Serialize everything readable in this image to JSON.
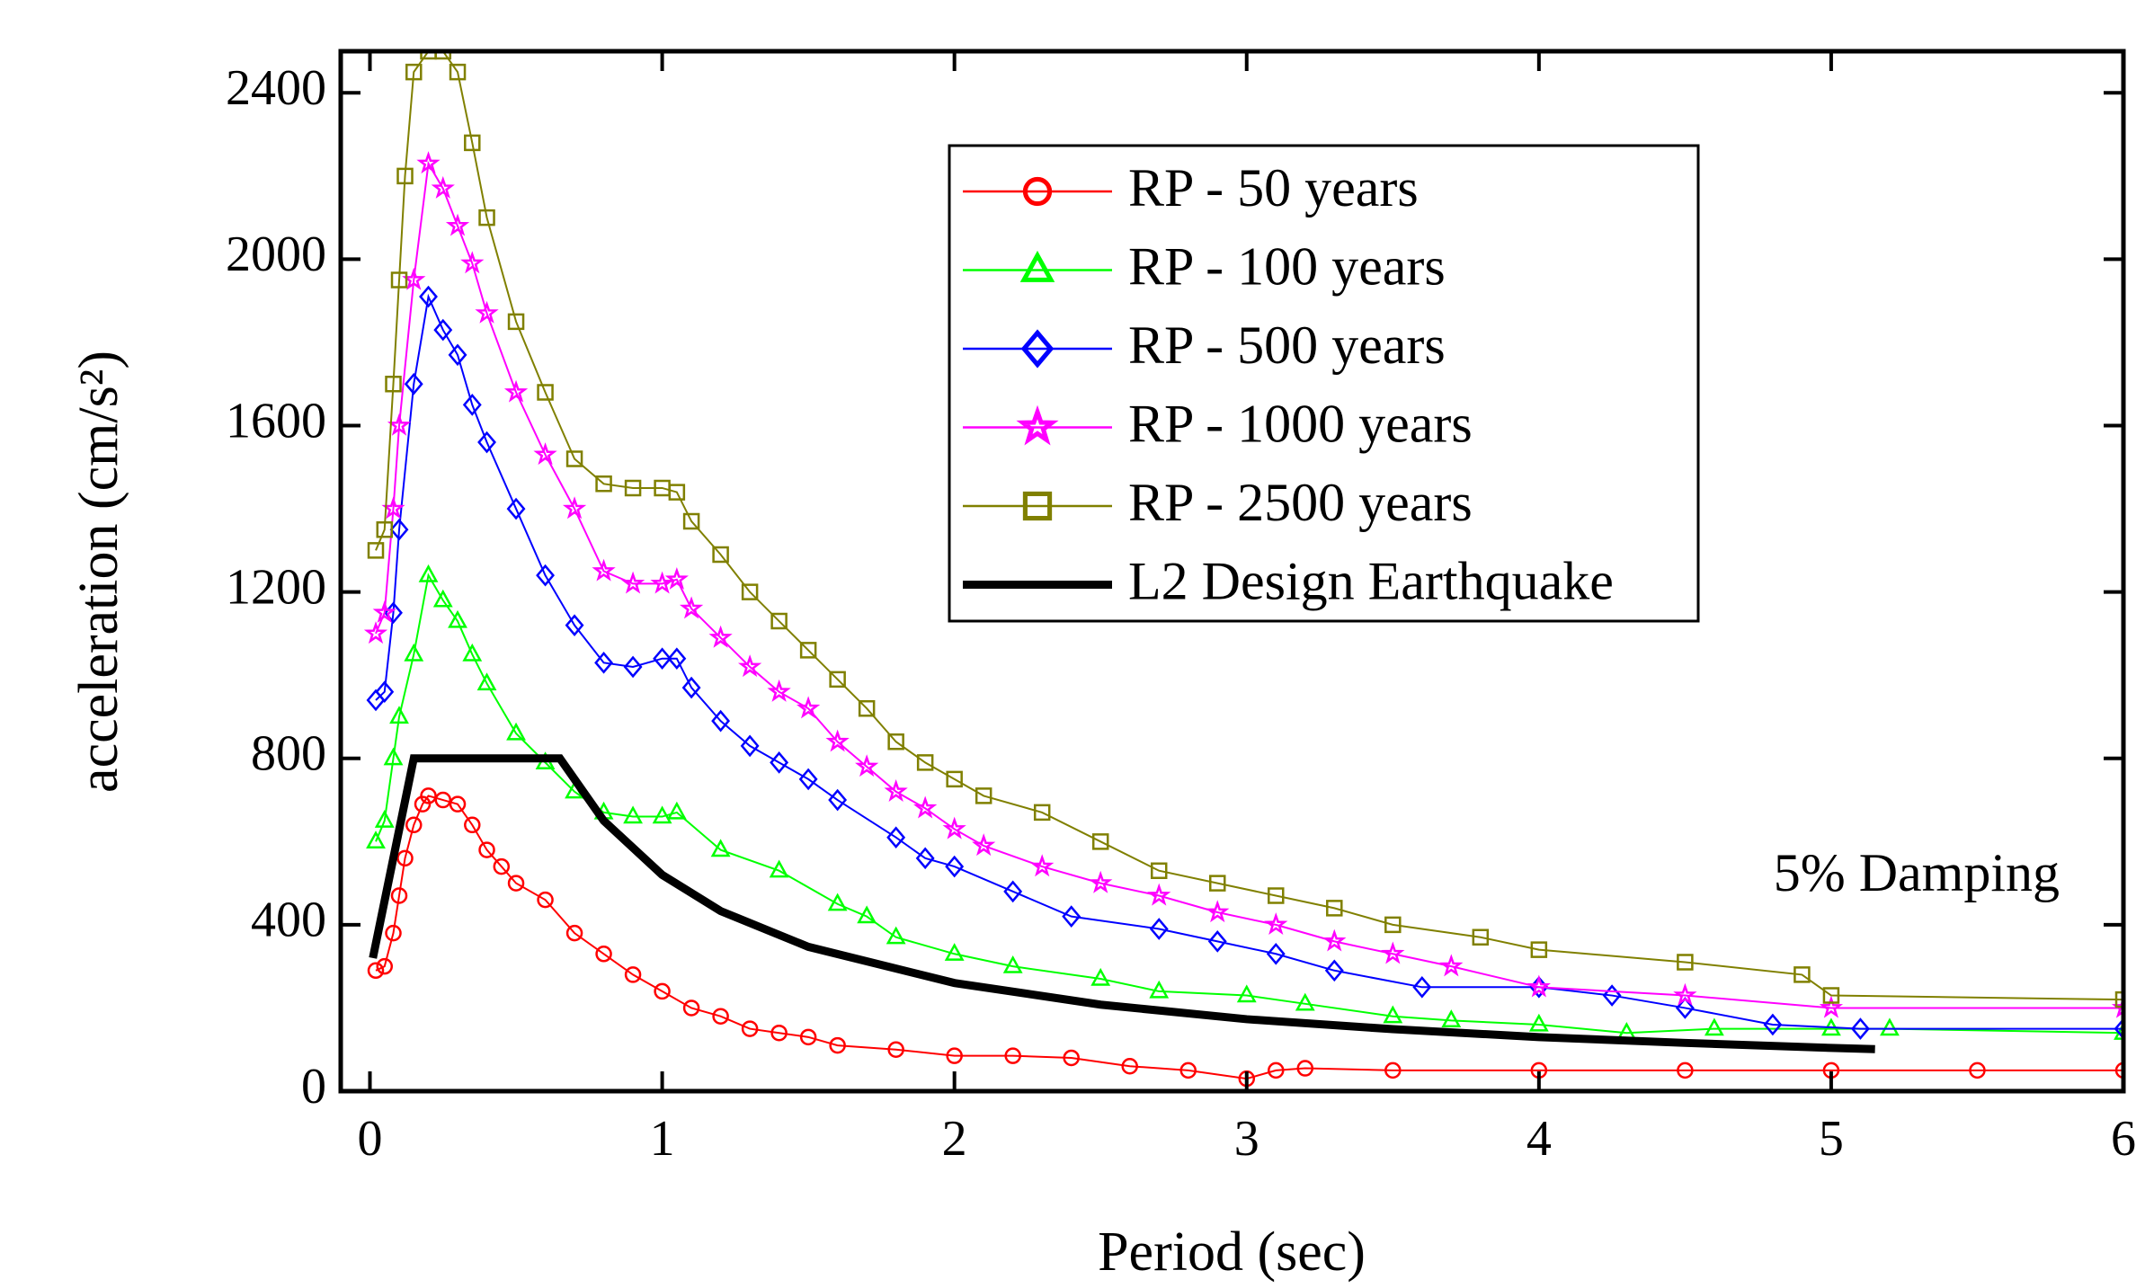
{
  "chart_data": {
    "type": "line",
    "xlabel": "Period (sec)",
    "ylabel": "acceleration (cm/s²)",
    "annotation": "5% Damping",
    "xlim": [
      -0.1,
      6
    ],
    "xticks": [
      0,
      1,
      2,
      3,
      4,
      5,
      6
    ],
    "ylim": [
      0,
      2500
    ],
    "yticks": [
      0,
      400,
      800,
      1200,
      1600,
      2000,
      2400
    ],
    "legend": "upper right",
    "series": [
      {
        "name": "RP - 50 years",
        "color": "#ff0000",
        "marker": "circle",
        "x": [
          0.02,
          0.05,
          0.08,
          0.1,
          0.12,
          0.15,
          0.18,
          0.2,
          0.25,
          0.3,
          0.35,
          0.4,
          0.45,
          0.5,
          0.6,
          0.7,
          0.8,
          0.9,
          1.0,
          1.1,
          1.2,
          1.3,
          1.4,
          1.5,
          1.6,
          1.8,
          2.0,
          2.2,
          2.4,
          2.6,
          2.8,
          3.0,
          3.1,
          3.2,
          3.5,
          4.0,
          4.5,
          5.0,
          5.5,
          6.0
        ],
        "values": [
          290,
          300,
          380,
          470,
          560,
          640,
          690,
          710,
          700,
          690,
          640,
          580,
          540,
          500,
          460,
          380,
          330,
          280,
          240,
          200,
          180,
          150,
          140,
          130,
          110,
          100,
          85,
          85,
          80,
          60,
          50,
          30,
          50,
          55,
          50,
          50,
          50,
          50,
          50,
          50
        ]
      },
      {
        "name": "RP - 100 years",
        "color": "#00ff00",
        "marker": "triangle",
        "x": [
          0.02,
          0.05,
          0.08,
          0.1,
          0.15,
          0.2,
          0.25,
          0.3,
          0.35,
          0.4,
          0.5,
          0.6,
          0.7,
          0.8,
          0.9,
          1.0,
          1.05,
          1.2,
          1.4,
          1.6,
          1.7,
          1.8,
          2.0,
          2.2,
          2.5,
          2.7,
          3.0,
          3.2,
          3.5,
          3.7,
          4.0,
          4.3,
          4.6,
          5.0,
          5.2,
          6.0
        ],
        "values": [
          600,
          650,
          800,
          900,
          1050,
          1240,
          1180,
          1130,
          1050,
          980,
          860,
          790,
          720,
          670,
          660,
          660,
          670,
          580,
          530,
          450,
          420,
          370,
          330,
          300,
          270,
          240,
          230,
          210,
          180,
          170,
          160,
          140,
          150,
          150,
          150,
          140
        ]
      },
      {
        "name": "RP - 500 years",
        "color": "#0000ff",
        "marker": "diamond",
        "x": [
          0.02,
          0.05,
          0.08,
          0.1,
          0.15,
          0.2,
          0.25,
          0.3,
          0.35,
          0.4,
          0.5,
          0.6,
          0.7,
          0.8,
          0.9,
          1.0,
          1.05,
          1.1,
          1.2,
          1.3,
          1.4,
          1.5,
          1.6,
          1.8,
          1.9,
          2.0,
          2.2,
          2.4,
          2.7,
          2.9,
          3.1,
          3.3,
          3.6,
          4.0,
          4.25,
          4.5,
          4.8,
          5.1,
          6.0
        ],
        "values": [
          940,
          960,
          1150,
          1350,
          1700,
          1910,
          1830,
          1770,
          1650,
          1560,
          1400,
          1240,
          1120,
          1030,
          1020,
          1040,
          1040,
          970,
          890,
          830,
          790,
          750,
          700,
          610,
          560,
          540,
          480,
          420,
          390,
          360,
          330,
          290,
          250,
          250,
          230,
          200,
          160,
          150,
          150
        ]
      },
      {
        "name": "RP - 1000 years",
        "color": "#ff00ff",
        "marker": "star",
        "x": [
          0.02,
          0.05,
          0.08,
          0.1,
          0.15,
          0.2,
          0.25,
          0.3,
          0.35,
          0.4,
          0.5,
          0.6,
          0.7,
          0.8,
          0.9,
          1.0,
          1.05,
          1.1,
          1.2,
          1.3,
          1.4,
          1.5,
          1.6,
          1.7,
          1.8,
          1.9,
          2.0,
          2.1,
          2.3,
          2.5,
          2.7,
          2.9,
          3.1,
          3.3,
          3.5,
          3.7,
          4.0,
          4.5,
          5.0,
          6.0
        ],
        "values": [
          1100,
          1150,
          1400,
          1600,
          1950,
          2230,
          2170,
          2080,
          1990,
          1870,
          1680,
          1530,
          1400,
          1250,
          1220,
          1220,
          1230,
          1160,
          1090,
          1020,
          960,
          920,
          840,
          780,
          720,
          680,
          630,
          590,
          540,
          500,
          470,
          430,
          400,
          360,
          330,
          300,
          250,
          230,
          200,
          200
        ]
      },
      {
        "name": "RP - 2500 years",
        "color": "#808000",
        "marker": "square",
        "x": [
          0.02,
          0.05,
          0.08,
          0.1,
          0.12,
          0.15,
          0.2,
          0.25,
          0.3,
          0.35,
          0.4,
          0.5,
          0.6,
          0.7,
          0.8,
          0.9,
          1.0,
          1.05,
          1.1,
          1.2,
          1.3,
          1.4,
          1.5,
          1.6,
          1.7,
          1.8,
          1.9,
          2.0,
          2.1,
          2.3,
          2.5,
          2.7,
          2.9,
          3.1,
          3.3,
          3.5,
          3.8,
          4.0,
          4.5,
          4.9,
          5.0,
          6.0
        ],
        "values": [
          1300,
          1350,
          1700,
          1950,
          2200,
          2450,
          2500,
          2500,
          2450,
          2280,
          2100,
          1850,
          1680,
          1520,
          1460,
          1450,
          1450,
          1440,
          1370,
          1290,
          1200,
          1130,
          1060,
          990,
          920,
          840,
          790,
          750,
          710,
          670,
          600,
          530,
          500,
          470,
          440,
          400,
          370,
          340,
          310,
          280,
          230,
          220
        ]
      },
      {
        "name": "L2 Design Earthquake",
        "color": "#000000",
        "marker": "none",
        "x": [
          0.01,
          0.15,
          0.65,
          0.8,
          1.0,
          1.2,
          1.5,
          2.0,
          2.5,
          3.0,
          3.5,
          4.0,
          4.5,
          5.0,
          5.15
        ],
        "values": [
          320,
          800,
          800,
          650,
          520,
          433,
          347,
          260,
          208,
          173,
          149,
          130,
          116,
          104,
          101
        ]
      }
    ]
  }
}
